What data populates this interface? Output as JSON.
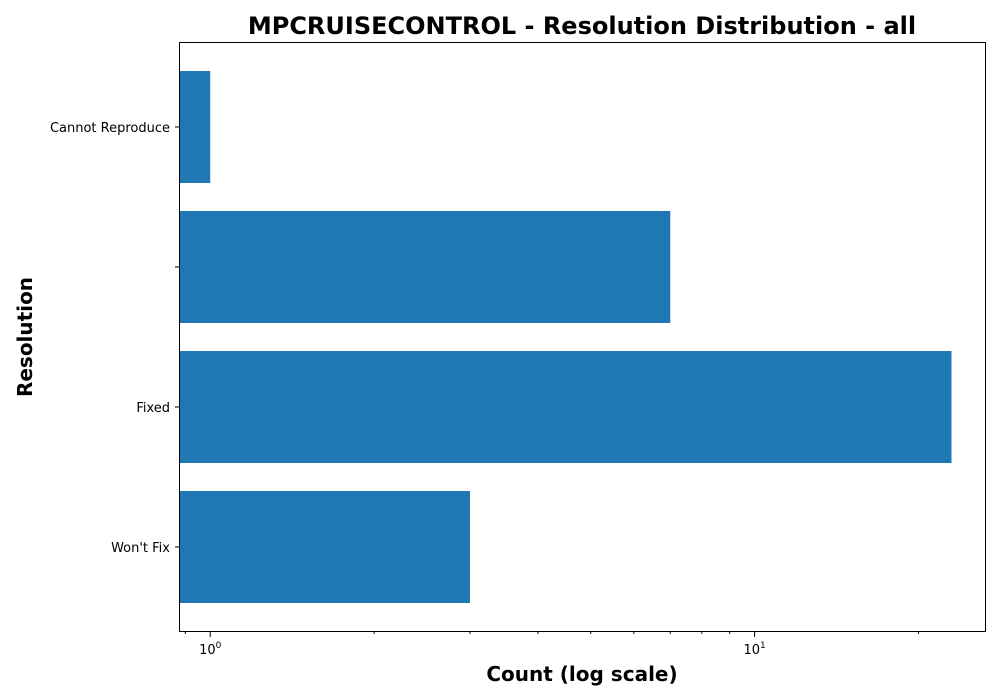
{
  "chart_data": {
    "type": "bar",
    "orientation": "horizontal",
    "title": "MPCRUISECONTROL - Resolution Distribution - all",
    "xlabel": "Count (log scale)",
    "ylabel": "Resolution",
    "x_scale": "log",
    "xlim": [
      0.88,
      26.5
    ],
    "x_major_ticks": [
      {
        "value": 1,
        "base": "10",
        "exponent": "0"
      },
      {
        "value": 10,
        "base": "10",
        "exponent": "1"
      }
    ],
    "categories": [
      "Cannot Reproduce",
      "",
      "Fixed",
      "Won't Fix"
    ],
    "values": [
      1,
      7,
      23,
      3
    ],
    "bar_color": "#1f77b4",
    "grid": false,
    "legend": "none"
  }
}
